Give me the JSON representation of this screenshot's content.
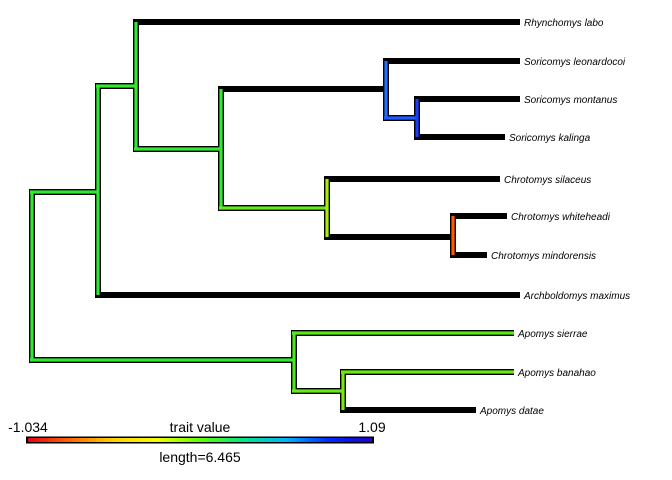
{
  "figure": {
    "tips": [
      {
        "id": "rlabo",
        "label": "Rhynchomys labo"
      },
      {
        "id": "sleo",
        "label": "Soricomys leonardocoi"
      },
      {
        "id": "smon",
        "label": "Soricomys montanus"
      },
      {
        "id": "skal",
        "label": "Soricomys kalinga"
      },
      {
        "id": "csil",
        "label": "Chrotomys silaceus"
      },
      {
        "id": "cwhi",
        "label": "Chrotomys whiteheadi"
      },
      {
        "id": "cmin",
        "label": "Chrotomys mindorensis"
      },
      {
        "id": "amax",
        "label": "Archboldomys maximus"
      },
      {
        "id": "asie",
        "label": "Apomys sierrae"
      },
      {
        "id": "aban",
        "label": "Apomys banahao"
      },
      {
        "id": "adat",
        "label": "Apomys datae"
      }
    ],
    "legend": {
      "title": "trait value",
      "min_label": "-1.034",
      "max_label": "1.09",
      "length_label": "length=6.465",
      "colors": [
        "#e8001a",
        "#ff6a00",
        "#ffd400",
        "#f5ff00",
        "#5dff00",
        "#00e68a",
        "#00b4ff",
        "#0028ff",
        "#1a00c8"
      ]
    }
  }
}
